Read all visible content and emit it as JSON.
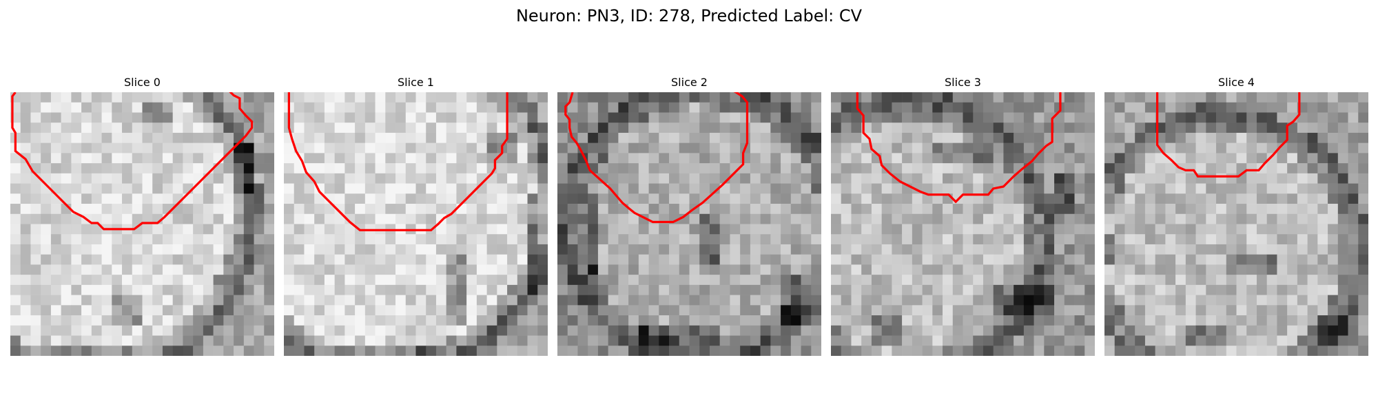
{
  "figure": {
    "title": "Neuron: PN3, ID: 278, Predicted Label: CV"
  },
  "panels": [
    {
      "title": "Slice 0",
      "seed": 11,
      "tone": [
        215,
        0.3,
        0.45,
        0.6,
        165
      ],
      "dark": [
        [
          0.4,
          0.78,
          0.1,
          0.12
        ],
        [
          0.5,
          0.05,
          0.1,
          0.08
        ],
        [
          0.85,
          0.2,
          0.06,
          0.2
        ],
        [
          0.15,
          0.95,
          0.3,
          0.06
        ]
      ]
    },
    {
      "title": "Slice 1",
      "seed": 23,
      "tone": [
        220,
        0.38,
        0.42,
        0.62,
        160
      ],
      "dark": [
        [
          0.62,
          0.6,
          0.06,
          0.3
        ],
        [
          0.2,
          0.95,
          0.4,
          0.06
        ],
        [
          0.92,
          0.4,
          0.05,
          0.4
        ],
        [
          0.78,
          0.15,
          0.1,
          0.1
        ]
      ]
    },
    {
      "title": "Slice 2",
      "seed": 37,
      "tone": [
        175,
        0.55,
        0.5,
        0.5,
        140
      ],
      "dark": [
        [
          0.55,
          0.45,
          0.05,
          0.2
        ],
        [
          0.3,
          0.9,
          0.3,
          0.06
        ],
        [
          0.85,
          0.7,
          0.08,
          0.2
        ],
        [
          0.1,
          0.4,
          0.06,
          0.3
        ]
      ]
    },
    {
      "title": "Slice 3",
      "seed": 53,
      "tone": [
        190,
        0.3,
        0.55,
        0.5,
        150
      ],
      "dark": [
        [
          0.6,
          0.75,
          0.25,
          0.08
        ],
        [
          0.15,
          0.85,
          0.1,
          0.1
        ],
        [
          0.85,
          0.3,
          0.08,
          0.15
        ],
        [
          0.4,
          0.2,
          0.2,
          0.08
        ]
      ]
    },
    {
      "title": "Slice 4",
      "seed": 71,
      "tone": [
        190,
        0.45,
        0.6,
        0.5,
        160
      ],
      "dark": [
        [
          0.0,
          0.55,
          0.04,
          0.1
        ],
        [
          0.45,
          0.6,
          0.2,
          0.1
        ],
        [
          0.8,
          0.85,
          0.15,
          0.1
        ],
        [
          0.3,
          0.9,
          0.15,
          0.08
        ]
      ]
    }
  ],
  "contours": {
    "color": "#ff0000",
    "slices": [
      [
        [
          0.5,
          0.0
        ],
        [
          0.2,
          0.4
        ],
        [
          0.2,
          3.5
        ],
        [
          0.5,
          4.0
        ],
        [
          0.5,
          5.8
        ],
        [
          1.5,
          6.6
        ],
        [
          2.2,
          7.8
        ],
        [
          3.2,
          8.8
        ],
        [
          4.2,
          9.8
        ],
        [
          5.2,
          10.8
        ],
        [
          6.2,
          11.8
        ],
        [
          7.2,
          12.3
        ],
        [
          8.0,
          12.9
        ],
        [
          8.6,
          12.9
        ],
        [
          9.2,
          13.5
        ],
        [
          12.2,
          13.5
        ],
        [
          13.0,
          12.9
        ],
        [
          14.0,
          12.9
        ],
        [
          14.5,
          12.9
        ],
        [
          15.2,
          12.3
        ],
        [
          16.2,
          11.3
        ],
        [
          17.2,
          10.3
        ],
        [
          18.2,
          9.3
        ],
        [
          19.2,
          8.3
        ],
        [
          20.2,
          7.3
        ],
        [
          21.2,
          6.3
        ],
        [
          22.2,
          5.3
        ],
        [
          23.2,
          4.3
        ],
        [
          23.8,
          3.5
        ],
        [
          23.8,
          2.9
        ],
        [
          23.2,
          2.3
        ],
        [
          22.6,
          1.6
        ],
        [
          22.6,
          0.6
        ],
        [
          22.0,
          0.3
        ],
        [
          21.5,
          -0.2
        ]
      ],
      [
        [
          0.5,
          0.0
        ],
        [
          0.5,
          3.5
        ],
        [
          0.8,
          4.6
        ],
        [
          1.2,
          5.8
        ],
        [
          1.8,
          6.8
        ],
        [
          2.2,
          7.9
        ],
        [
          3.0,
          8.8
        ],
        [
          3.5,
          9.8
        ],
        [
          4.5,
          10.8
        ],
        [
          5.5,
          11.8
        ],
        [
          6.5,
          12.8
        ],
        [
          7.5,
          13.6
        ],
        [
          9.5,
          13.6
        ],
        [
          11.5,
          13.6
        ],
        [
          13.5,
          13.6
        ],
        [
          14.5,
          13.6
        ],
        [
          15.2,
          13.0
        ],
        [
          15.8,
          12.4
        ],
        [
          16.5,
          12.0
        ],
        [
          17.3,
          11.2
        ],
        [
          18.2,
          10.3
        ],
        [
          19.0,
          9.5
        ],
        [
          19.8,
          8.7
        ],
        [
          20.5,
          8.0
        ],
        [
          20.8,
          7.5
        ],
        [
          20.8,
          6.7
        ],
        [
          21.5,
          6.0
        ],
        [
          21.5,
          5.3
        ],
        [
          22.0,
          4.6
        ],
        [
          22.0,
          0.0
        ]
      ],
      [
        [
          1.5,
          0.0
        ],
        [
          1.2,
          1.0
        ],
        [
          0.8,
          1.4
        ],
        [
          0.8,
          2.2
        ],
        [
          1.2,
          2.7
        ],
        [
          1.2,
          3.5
        ],
        [
          1.4,
          4.4
        ],
        [
          1.9,
          5.0
        ],
        [
          2.3,
          5.7
        ],
        [
          2.8,
          6.7
        ],
        [
          3.2,
          7.7
        ],
        [
          4.2,
          8.6
        ],
        [
          5.2,
          9.5
        ],
        [
          5.8,
          10.2
        ],
        [
          6.4,
          10.9
        ],
        [
          7.1,
          11.5
        ],
        [
          7.6,
          11.9
        ],
        [
          8.4,
          12.3
        ],
        [
          9.4,
          12.8
        ],
        [
          10.4,
          12.8
        ],
        [
          11.4,
          12.8
        ],
        [
          12.4,
          12.3
        ],
        [
          13.3,
          11.6
        ],
        [
          14.3,
          10.9
        ],
        [
          15.3,
          10.0
        ],
        [
          16.3,
          9.1
        ],
        [
          17.3,
          8.1
        ],
        [
          18.3,
          7.1
        ],
        [
          18.3,
          6.0
        ],
        [
          18.7,
          5.0
        ],
        [
          18.7,
          3.2
        ],
        [
          18.7,
          1.0
        ],
        [
          18.2,
          0.4
        ],
        [
          17.6,
          0.0
        ],
        [
          17.2,
          -0.2
        ]
      ],
      [
        [
          2.6,
          0.0
        ],
        [
          2.6,
          1.6
        ],
        [
          3.2,
          2.3
        ],
        [
          3.2,
          4.0
        ],
        [
          3.8,
          4.6
        ],
        [
          4.0,
          5.6
        ],
        [
          4.8,
          6.3
        ],
        [
          5.0,
          7.2
        ],
        [
          5.8,
          8.0
        ],
        [
          6.8,
          8.8
        ],
        [
          7.8,
          9.3
        ],
        [
          8.8,
          9.8
        ],
        [
          9.6,
          10.1
        ],
        [
          11.6,
          10.1
        ],
        [
          12.3,
          10.8
        ],
        [
          13.0,
          10.1
        ],
        [
          13.5,
          10.1
        ],
        [
          15.5,
          10.1
        ],
        [
          16.0,
          9.5
        ],
        [
          17.0,
          9.3
        ],
        [
          17.5,
          8.8
        ],
        [
          18.0,
          8.3
        ],
        [
          18.8,
          7.6
        ],
        [
          19.8,
          6.8
        ],
        [
          20.4,
          6.1
        ],
        [
          21.2,
          5.3
        ],
        [
          21.8,
          4.9
        ],
        [
          21.8,
          2.6
        ],
        [
          22.6,
          1.8
        ],
        [
          22.6,
          0.0
        ]
      ],
      [
        [
          5.2,
          0.0
        ],
        [
          5.2,
          5.2
        ],
        [
          5.8,
          6.0
        ],
        [
          6.6,
          6.7
        ],
        [
          7.3,
          7.4
        ],
        [
          8.0,
          7.7
        ],
        [
          8.8,
          7.7
        ],
        [
          9.2,
          8.3
        ],
        [
          10.2,
          8.3
        ],
        [
          11.2,
          8.3
        ],
        [
          12.2,
          8.3
        ],
        [
          13.2,
          8.3
        ],
        [
          14.0,
          7.7
        ],
        [
          15.2,
          7.7
        ],
        [
          15.8,
          7.0
        ],
        [
          16.6,
          6.2
        ],
        [
          17.3,
          5.4
        ],
        [
          18.0,
          4.7
        ],
        [
          18.0,
          3.3
        ],
        [
          18.6,
          2.9
        ],
        [
          19.2,
          2.2
        ],
        [
          19.2,
          0.0
        ]
      ]
    ]
  }
}
